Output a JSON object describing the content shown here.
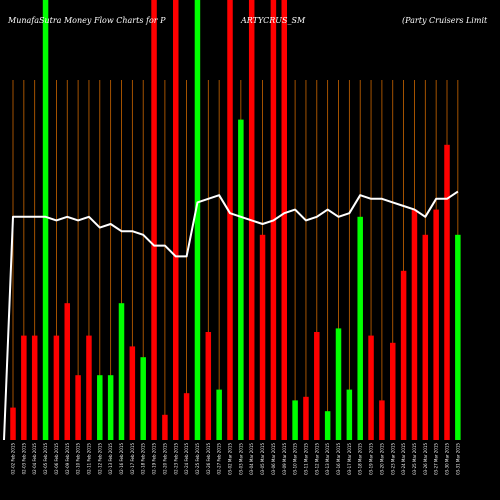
{
  "title_parts": [
    "MunafaSutra  Money Flow  Charts for P",
    "ARTYCRUS_SM",
    "(Party Cruisers Limit"
  ],
  "colors": {
    "background": "#000000",
    "up": "#00ff00",
    "down": "#ff0000",
    "gridline": "#cc6600",
    "line": "#ffffff"
  },
  "chart_data": {
    "type": "bar",
    "ylim": [
      0,
      100
    ],
    "grid": true,
    "series": [
      {
        "values": [
          9,
          29,
          29,
          100,
          29,
          38,
          18,
          29,
          18,
          18,
          38,
          26,
          23,
          100,
          7,
          100,
          13,
          100,
          30,
          14,
          100,
          89,
          100,
          57,
          100,
          100,
          11,
          12,
          30,
          8,
          31,
          14,
          62,
          29,
          11,
          27,
          47,
          64,
          57,
          64,
          82,
          57
        ]
      },
      {
        "values": [
          62,
          62,
          62,
          62,
          61,
          62,
          61,
          62,
          59,
          60,
          58,
          58,
          57,
          54,
          54,
          51,
          51,
          66,
          67,
          68,
          63,
          62,
          61,
          60,
          61,
          63,
          64,
          61,
          62,
          64,
          62,
          63,
          68,
          67,
          67,
          66,
          65,
          64,
          62,
          67,
          67,
          69
        ]
      }
    ],
    "bar_colors": [
      "down",
      "down",
      "down",
      "up",
      "down",
      "down",
      "down",
      "down",
      "up",
      "up",
      "up",
      "down",
      "up",
      "down",
      "down",
      "down",
      "down",
      "up",
      "down",
      "up",
      "down",
      "up",
      "down",
      "down",
      "down",
      "down",
      "up",
      "down",
      "down",
      "up",
      "up",
      "up",
      "up",
      "down",
      "down",
      "down",
      "down",
      "down",
      "down",
      "down",
      "down",
      "up"
    ],
    "x_labels": [
      "02-02 Feb 2015",
      "02-03 Feb 2015",
      "02-04 Feb 2015",
      "02-05 Feb 2015",
      "02-06 Feb 2015",
      "02-09 Feb 2015",
      "02-10 Feb 2015",
      "02-11 Feb 2015",
      "02-12 Feb 2015",
      "02-13 Feb 2015",
      "02-16 Feb 2015",
      "02-17 Feb 2015",
      "02-18 Feb 2015",
      "02-19 Feb 2015",
      "02-20 Feb 2015",
      "02-23 Feb 2015",
      "02-24 Feb 2015",
      "02-25 Feb 2015",
      "02-26 Feb 2015",
      "02-27 Feb 2015",
      "03-02 Mar 2015",
      "03-03 Mar 2015",
      "03-04 Mar 2015",
      "03-05 Mar 2015",
      "03-06 Mar 2015",
      "03-09 Mar 2015",
      "03-10 Mar 2015",
      "03-11 Mar 2015",
      "03-12 Mar 2015",
      "03-13 Mar 2015",
      "03-16 Mar 2015",
      "03-17 Mar 2015",
      "03-18 Mar 2015",
      "03-19 Mar 2015",
      "03-20 Mar 2015",
      "03-23 Mar 2015",
      "03-24 Mar 2015",
      "03-25 Mar 2015",
      "03-26 Mar 2015",
      "03-27 Mar 2015",
      "03-30 Mar 2015",
      "03-31 Mar 2015"
    ]
  }
}
